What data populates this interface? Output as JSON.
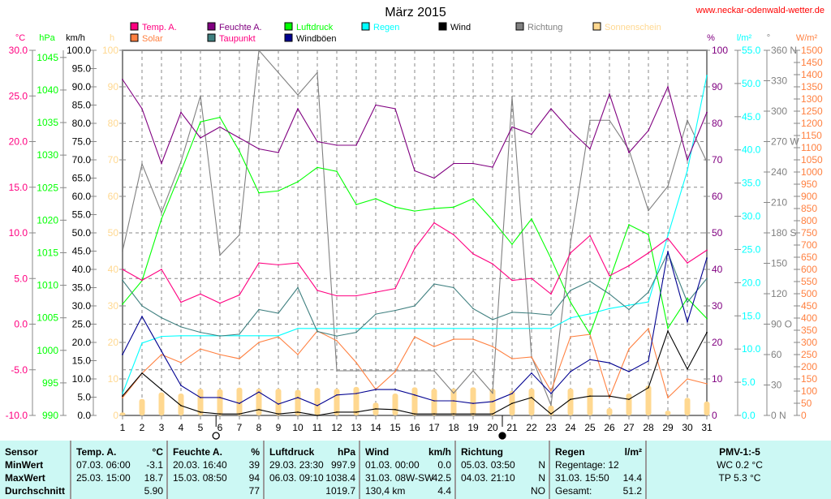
{
  "header": {
    "title": "März 2015",
    "site": "www.neckar-odenwald-wetter.de"
  },
  "colors": {
    "temp": "#ff0080",
    "feuchte": "#800080",
    "luftdruck": "#00ff00",
    "regen": "#00ffff",
    "wind": "#000000",
    "richtung": "#808080",
    "sonne": "#ffd890",
    "solar": "#ff8040",
    "taupunkt": "#408080",
    "windboeen": "#000090"
  },
  "legend": [
    {
      "key": "temp",
      "label": "Temp. A."
    },
    {
      "key": "feuchte",
      "label": "Feuchte A."
    },
    {
      "key": "luftdruck",
      "label": "Luftdruck"
    },
    {
      "key": "regen",
      "label": "Regen"
    },
    {
      "key": "wind",
      "label": "Wind"
    },
    {
      "key": "richtung",
      "label": "Richtung"
    },
    {
      "key": "sonne",
      "label": "Sonnenschein"
    },
    {
      "key": "solar",
      "label": "Solar"
    },
    {
      "key": "taupunkt",
      "label": "Taupunkt"
    },
    {
      "key": "windboeen",
      "label": "Windböen"
    }
  ],
  "chart_data": {
    "type": "line",
    "title": "März 2015",
    "x": [
      1,
      2,
      3,
      4,
      5,
      6,
      7,
      8,
      9,
      10,
      11,
      12,
      13,
      14,
      15,
      16,
      17,
      18,
      19,
      20,
      21,
      22,
      23,
      24,
      25,
      26,
      27,
      28,
      29,
      30,
      31
    ],
    "axes": {
      "temp": {
        "unit": "°C",
        "range": [
          -10,
          30
        ],
        "ticks": [
          "30.0",
          "25.0",
          "20.0",
          "15.0",
          "10.0",
          "5.0",
          "0.0",
          "-5.0",
          "-10.0"
        ]
      },
      "hpa": {
        "unit": "hPa",
        "range": [
          990,
          1046.1
        ],
        "ticks": [
          "1045",
          "1040",
          "1035",
          "1030",
          "1025",
          "1020",
          "1015",
          "1010",
          "1005",
          "1000",
          "995",
          "990"
        ]
      },
      "kmh": {
        "unit": "km/h",
        "range": [
          0,
          100
        ],
        "ticks": [
          "100.0",
          "95.0",
          "90.0",
          "85.0",
          "80.0",
          "75.0",
          "70.0",
          "65.0",
          "60.0",
          "55.0",
          "50.0",
          "45.0",
          "40.0",
          "35.0",
          "30.0",
          "25.0",
          "20.0",
          "15.0",
          "10.0",
          "5.0",
          "0.0"
        ]
      },
      "h": {
        "unit": "h",
        "range": [
          0,
          100
        ],
        "ticks": [
          "100",
          "90",
          "80",
          "70",
          "60",
          "50",
          "40",
          "30",
          "20",
          "10",
          "0"
        ]
      },
      "pct": {
        "unit": "%",
        "range": [
          0,
          100
        ],
        "ticks": [
          "100",
          "90",
          "80",
          "70",
          "60",
          "50",
          "40",
          "30",
          "20",
          "10",
          "0"
        ]
      },
      "rain": {
        "unit": "l/m²",
        "range": [
          0,
          55
        ],
        "ticks": [
          "55.0",
          "50.0",
          "45.0",
          "40.0",
          "35.0",
          "30.0",
          "25.0",
          "20.0",
          "15.0",
          "10.0",
          "5.0",
          "0.0"
        ]
      },
      "deg": {
        "unit": "°",
        "range": [
          0,
          360
        ],
        "ticks": [
          "360 N",
          "330",
          "300",
          "270 W",
          "240",
          "210",
          "180 S",
          "150",
          "120",
          "90 O",
          "60",
          "30",
          "0 N"
        ]
      },
      "solar": {
        "unit": "W/m²",
        "range": [
          0,
          1500
        ],
        "ticks": [
          "1500",
          "1450",
          "1400",
          "1350",
          "1300",
          "1250",
          "1200",
          "1150",
          "1100",
          "1050",
          "1000",
          "950",
          "900",
          "850",
          "800",
          "750",
          "700",
          "650",
          "600",
          "550",
          "500",
          "450",
          "400",
          "350",
          "300",
          "250",
          "200",
          "150",
          "100",
          "50",
          "0"
        ]
      }
    },
    "series": [
      {
        "name": "Sonnenschein",
        "key": "sonne",
        "axis": "h",
        "kind": "bar",
        "values": [
          0.8,
          4.5,
          6.3,
          6,
          7.3,
          7.2,
          7.6,
          7.3,
          7.3,
          7,
          7.5,
          7.3,
          7.8,
          3.5,
          6,
          7.7,
          7.3,
          7.4,
          7.7,
          7.3,
          6.7,
          7.4,
          2.7,
          7.4,
          7.6,
          2,
          6,
          8.2,
          1.3,
          4.8,
          3.8
        ]
      },
      {
        "name": "Richtung",
        "key": "richtung",
        "axis": "deg",
        "values": [
          162,
          248,
          200,
          250,
          315,
          158,
          178,
          360,
          338,
          316,
          338,
          44,
          44,
          44,
          44,
          44,
          44,
          22,
          44,
          22,
          314,
          58,
          10,
          170,
          291,
          291,
          262,
          202,
          226,
          291,
          250
        ]
      },
      {
        "name": "Solar",
        "key": "solar",
        "axis": "solar",
        "values": [
          73,
          173,
          250,
          217,
          273,
          250,
          233,
          300,
          323,
          250,
          347,
          307,
          217,
          107,
          180,
          323,
          283,
          313,
          313,
          283,
          233,
          240,
          100,
          323,
          333,
          73,
          273,
          357,
          73,
          150,
          130
        ]
      },
      {
        "name": "Regen",
        "key": "regen",
        "axis": "rain",
        "values": [
          3.3,
          10.9,
          11.9,
          12,
          12,
          12,
          12,
          12,
          12,
          13.1,
          13.1,
          13.1,
          13.1,
          13.1,
          13.1,
          13.1,
          13.1,
          13.1,
          13.1,
          13.1,
          13.1,
          13.1,
          13.1,
          14.7,
          15.3,
          16.1,
          16.6,
          17.1,
          27.1,
          36.9,
          51.2
        ]
      },
      {
        "name": "Luftdruck",
        "key": "luftdruck",
        "axis": "hpa",
        "values": [
          1007.1,
          1010.7,
          1020.2,
          1027.5,
          1035.1,
          1035.8,
          1030.6,
          1024.2,
          1024.5,
          1025.9,
          1028.1,
          1027.5,
          1022.4,
          1023.3,
          1022.0,
          1021.4,
          1021.8,
          1022.0,
          1023.3,
          1020.0,
          1016.3,
          1020.2,
          1014.1,
          1007.4,
          1002.5,
          1010.8,
          1019.3,
          1017.8,
          1003.4,
          1008.0,
          1004.9
        ]
      },
      {
        "name": "Feuchte A.",
        "key": "feuchte",
        "axis": "pct",
        "values": [
          92,
          84,
          69,
          83,
          76,
          79,
          76,
          73,
          72,
          84,
          75,
          74,
          74,
          85,
          84,
          67,
          65,
          69,
          69,
          68,
          79,
          77,
          84,
          78,
          73,
          88,
          72,
          78,
          90,
          70,
          83
        ]
      },
      {
        "name": "Taupunkt",
        "key": "taupunkt",
        "axis": "temp",
        "values": [
          4.8,
          2.0,
          0.7,
          -0.3,
          -0.9,
          -1.3,
          -1.1,
          1.6,
          1.2,
          4.0,
          -0.8,
          -1.3,
          -0.9,
          1.1,
          1.5,
          2.0,
          4.4,
          4.0,
          1.7,
          0.5,
          1.3,
          1.2,
          1.0,
          3.7,
          4.7,
          3.3,
          1.6,
          3.5,
          7.8,
          2.4,
          5.0
        ]
      },
      {
        "name": "Temp. A.",
        "key": "temp",
        "axis": "temp",
        "values": [
          6.0,
          4.8,
          6.0,
          2.4,
          3.3,
          2.3,
          3.2,
          6.7,
          6.5,
          6.7,
          3.7,
          3.1,
          3.1,
          3.5,
          3.9,
          8.3,
          11.1,
          9.8,
          7.7,
          6.6,
          4.8,
          5.0,
          3.3,
          7.8,
          9.7,
          5.3,
          6.4,
          7.8,
          9.4,
          6.7,
          8.1
        ]
      },
      {
        "name": "Windböen",
        "key": "windboeen",
        "axis": "kmh",
        "values": [
          16.7,
          27.1,
          17.6,
          8.2,
          4.9,
          4.9,
          3.3,
          6.4,
          3.1,
          4.9,
          2.7,
          5.6,
          6.0,
          7.1,
          7.1,
          5.6,
          4.0,
          4.0,
          3.3,
          3.8,
          6.0,
          11.6,
          6.0,
          12.0,
          15.3,
          14.4,
          12.0,
          14.9,
          44.9,
          25.6,
          43.1
        ]
      },
      {
        "name": "Wind",
        "key": "wind",
        "axis": "kmh",
        "values": [
          5.3,
          11.6,
          7.1,
          2.7,
          0.9,
          0.4,
          0.4,
          1.6,
          0.4,
          0.9,
          0,
          0.9,
          0.9,
          1.8,
          1.6,
          0.4,
          0.4,
          0.4,
          0.4,
          0.4,
          3.3,
          4.9,
          0.4,
          4.4,
          5.3,
          5.3,
          4.4,
          7.6,
          23.1,
          12.7,
          22.7
        ]
      }
    ],
    "moon": [
      {
        "phase": "full",
        "day": 5.8
      },
      {
        "phase": "new",
        "day": 20.5
      }
    ]
  },
  "table": {
    "headers": [
      [
        "Sensor",
        ""
      ],
      [
        "Temp. A.",
        "°C"
      ],
      [
        "Feuchte A.",
        "%"
      ],
      [
        "Luftdruck",
        "hPa"
      ],
      [
        "Wind",
        "km/h"
      ],
      [
        "Richtung",
        ""
      ],
      [
        "Regen",
        "l/m²"
      ],
      [
        "PMV-1:-5",
        ""
      ]
    ],
    "rowlabels": [
      "MinWert",
      "MaxWert",
      "Durchschnitt"
    ],
    "temp": [
      [
        "07.03.  06:00",
        "-3.1"
      ],
      [
        "25.03.  15:00",
        "18.7"
      ],
      [
        "",
        "5.90"
      ]
    ],
    "feuchte": [
      [
        "20.03.  16:40",
        "39"
      ],
      [
        "15.03.  08:50",
        "94"
      ],
      [
        "",
        "77"
      ]
    ],
    "luftdruck": [
      [
        "29.03.  23:30",
        "997.9"
      ],
      [
        "06.03.  09:10",
        "1038.4"
      ],
      [
        "",
        "1019.7"
      ]
    ],
    "wind": [
      [
        "01.03.  00:00",
        "0.0"
      ],
      [
        "31.03.  08W-SW",
        "42.5"
      ],
      [
        "130,4 km",
        "4.4"
      ]
    ],
    "richtung": [
      [
        "05.03.  03:50",
        "N"
      ],
      [
        "04.03.  21:10",
        "N"
      ],
      [
        "",
        "NO"
      ]
    ],
    "regen": [
      [
        "Regentage: 12",
        ""
      ],
      [
        "31.03.  15:50",
        "14.4"
      ],
      [
        "Gesamt:",
        "51.2"
      ]
    ],
    "pmv": [
      "WC 0.2 °C",
      "TP 5.3 °C"
    ]
  }
}
